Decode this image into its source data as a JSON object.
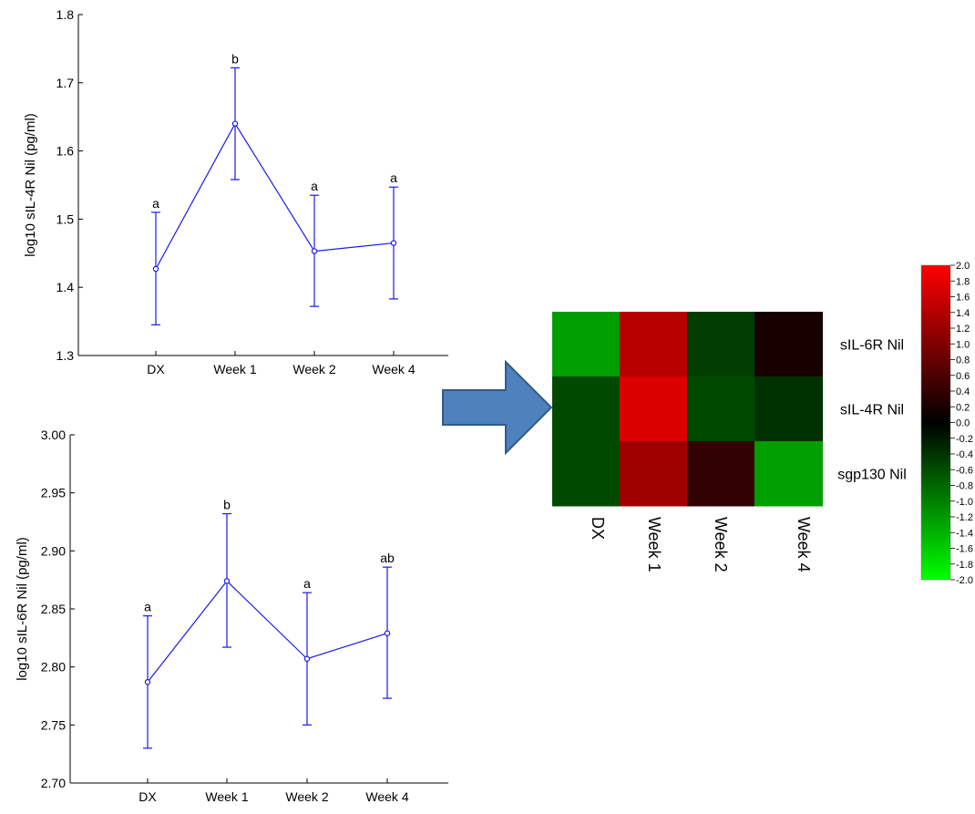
{
  "chart_data": [
    {
      "type": "line",
      "ylabel": "log10 sIL-4R Nil (pg/ml)",
      "xlabel": "",
      "categories": [
        "DX",
        "Week 1",
        "Week 2",
        "Week 4"
      ],
      "ylim": [
        1.3,
        1.8
      ],
      "yticks": [
        "1.3",
        "1.4",
        "1.5",
        "1.6",
        "1.7",
        "1.8"
      ],
      "series": [
        {
          "values": [
            1.427,
            1.64,
            1.453,
            1.465
          ],
          "lower": [
            1.345,
            1.558,
            1.372,
            1.383
          ],
          "upper": [
            1.51,
            1.722,
            1.535,
            1.547
          ],
          "labels": [
            "a",
            "b",
            "a",
            "a"
          ]
        }
      ],
      "color": "#1a1ae6"
    },
    {
      "type": "line",
      "ylabel": "log10 sIL-6R Nil (pg/ml)",
      "xlabel": "",
      "categories": [
        "DX",
        "Week 1",
        "Week 2",
        "Week 4"
      ],
      "ylim": [
        2.7,
        3.0
      ],
      "yticks": [
        "2.70",
        "2.75",
        "2.80",
        "2.85",
        "2.90",
        "2.95",
        "3.00"
      ],
      "series": [
        {
          "values": [
            2.787,
            2.874,
            2.807,
            2.829
          ],
          "lower": [
            2.73,
            2.817,
            2.75,
            2.773
          ],
          "upper": [
            2.844,
            2.932,
            2.864,
            2.886
          ],
          "labels": [
            "a",
            "b",
            "a",
            "ab"
          ]
        }
      ],
      "color": "#1a1ae6"
    },
    {
      "type": "heatmap",
      "rows": [
        "sIL-6R Nil",
        "sIL-4R Nil",
        "sgp130 Nil"
      ],
      "columns": [
        "DX",
        "Week 1",
        "Week 2",
        "Week 4"
      ],
      "values": [
        [
          -1.2,
          1.4,
          -0.4,
          0.1
        ],
        [
          -0.5,
          1.7,
          -0.5,
          -0.3
        ],
        [
          -0.5,
          1.2,
          0.3,
          -1.2
        ]
      ],
      "scale": {
        "min": -2.0,
        "max": 2.0,
        "ticks": [
          "2.0",
          "1.8",
          "1.6",
          "1.4",
          "1.2",
          "1.0",
          "0.8",
          "0.6",
          "0.4",
          "0.2",
          "0.0",
          "-0.2",
          "-0.4",
          "-0.6",
          "-0.8",
          "-1.0",
          "-1.2",
          "-1.4",
          "-1.6",
          "-1.8",
          "-2.0"
        ]
      },
      "colors": {
        "positive": "#ff0000",
        "zero": "#000000",
        "negative": "#00ff00"
      }
    }
  ],
  "arrow": {
    "icon": "right-arrow-icon",
    "color": "#4f81bd"
  }
}
